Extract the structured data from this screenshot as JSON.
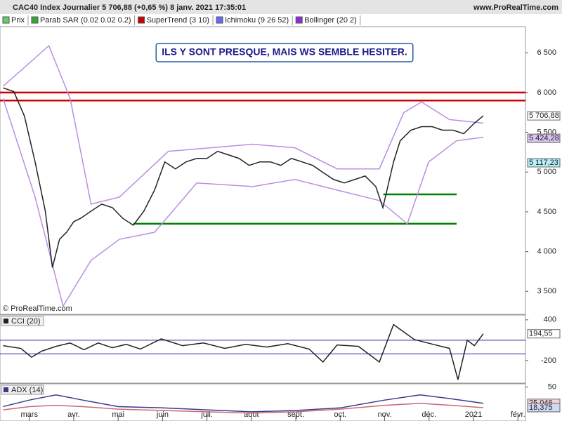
{
  "header": {
    "title": "CAC40 Index Journalier 5 706,88 (+0,65 %) 8 janv. 2021 17:35:01",
    "site": "www.ProRealTime.com",
    "watermark": "© ProRealTime.com",
    "legend": [
      {
        "text": "Prix",
        "color": "#66cc66"
      },
      {
        "text": "Parab SAR (0.02 0.02 0.2)",
        "color": "#33aa33"
      },
      {
        "text": "SuperTrend (3 10)",
        "color": "#cc0000"
      },
      {
        "text": "Ichimoku (9 26 52)",
        "color": "#6666ff"
      },
      {
        "text": "Bollinger (20 2)",
        "color": "#8a2be2"
      }
    ]
  },
  "chart_data": [
    {
      "type": "line",
      "annotation": "ILS Y SONT PRESQUE, MAIS WS SEMBLE HESITER.",
      "xlim": [
        2.34,
        14.17
      ],
      "ylim": [
        3220,
        6740
      ],
      "yticks": [
        {
          "value": 3500,
          "label": "3 500"
        },
        {
          "value": 4000,
          "label": "4 000"
        },
        {
          "value": 4500,
          "label": "4 500"
        },
        {
          "value": 5000,
          "label": "5 000"
        },
        {
          "value": 5500,
          "label": "5 500"
        },
        {
          "value": 6000,
          "label": "6 000"
        },
        {
          "value": 6500,
          "label": "6 500"
        }
      ],
      "series": [
        {
          "color": "#ba8fe0",
          "x": [
            2.41,
            3.44,
            3.92,
            4.39,
            5.03,
            6.13,
            7.08,
            8.03,
            8.98,
            9.93,
            10.88,
            11.43,
            11.83,
            12.46,
            13.22
          ],
          "values": [
            6080,
            6588,
            5925,
            4597,
            4686,
            5261,
            5305,
            5350,
            5305,
            5040,
            5040,
            5748,
            5881,
            5660,
            5615
          ]
        },
        {
          "color": "#ba8fe0",
          "x": [
            2.41,
            3.13,
            3.76,
            4.39,
            5.03,
            5.82,
            6.77,
            8.03,
            8.98,
            9.93,
            10.88,
            11.51,
            11.99,
            12.62,
            13.22
          ],
          "values": [
            5925,
            4686,
            3314,
            3890,
            4155,
            4243,
            4863,
            4818,
            4907,
            4774,
            4642,
            4350,
            5128,
            5394,
            5438
          ]
        },
        {
          "color": "#222222",
          "x": [
            2.41,
            2.65,
            2.89,
            3.13,
            3.36,
            3.52,
            3.68,
            3.84,
            4.0,
            4.16,
            4.39,
            4.63,
            4.87,
            5.1,
            5.34,
            5.58,
            5.82,
            6.05,
            6.29,
            6.53,
            6.77,
            7.0,
            7.24,
            7.48,
            7.72,
            7.95,
            8.19,
            8.43,
            8.66,
            8.9,
            9.14,
            9.38,
            9.61,
            9.85,
            10.09,
            10.33,
            10.56,
            10.8,
            10.96,
            11.2,
            11.35,
            11.59,
            11.83,
            12.07,
            12.3,
            12.54,
            12.78,
            13.02,
            13.22
          ],
          "values": [
            6058,
            6013,
            5704,
            5128,
            4509,
            3800,
            4155,
            4243,
            4376,
            4420,
            4509,
            4597,
            4553,
            4420,
            4332,
            4509,
            4774,
            5128,
            5040,
            5128,
            5172,
            5172,
            5261,
            5217,
            5172,
            5084,
            5128,
            5128,
            5084,
            5172,
            5128,
            5084,
            4995,
            4907,
            4863,
            4907,
            4951,
            4818,
            4553,
            5128,
            5394,
            5527,
            5571,
            5571,
            5527,
            5527,
            5483,
            5615,
            5706.88
          ]
        }
      ],
      "hlines": [
        {
          "value": 6000,
          "color": "#d00000",
          "xrange": [
            2.34,
            14.17
          ]
        },
        {
          "value": 5900,
          "color": "#d00000",
          "xrange": [
            2.34,
            14.17
          ]
        },
        {
          "value": 4720,
          "color": "#008000",
          "xrange": [
            10.97,
            12.62
          ]
        },
        {
          "value": 4350,
          "color": "#008000",
          "xrange": [
            5.34,
            12.62
          ]
        }
      ],
      "price_labels": [
        {
          "value": 5706.88,
          "label": "5 706,88",
          "color": "#ffffff"
        },
        {
          "value": 5424.28,
          "label": "5 424,28",
          "color": "#d8c4f0"
        },
        {
          "value": 5117.23,
          "label": "5 117,23",
          "color": "#b8f0f8"
        }
      ]
    },
    {
      "type": "line",
      "title": "CCI (20)",
      "xlim": [
        2.34,
        14.17
      ],
      "ylim": [
        -520,
        460
      ],
      "yticks": [
        400,
        -200
      ],
      "series": [
        {
          "color": "#222222",
          "x": [
            2.41,
            2.81,
            3.05,
            3.28,
            3.6,
            3.92,
            4.23,
            4.55,
            4.87,
            5.18,
            5.5,
            5.97,
            6.45,
            6.92,
            7.4,
            7.87,
            8.35,
            8.82,
            9.3,
            9.61,
            9.93,
            10.41,
            10.88,
            11.2,
            11.67,
            12.15,
            12.46,
            12.65,
            12.86,
            13.02,
            13.22
          ],
          "values": [
            20,
            -20,
            -150,
            -60,
            10,
            60,
            -40,
            60,
            -10,
            40,
            -30,
            120,
            20,
            60,
            -20,
            40,
            0,
            50,
            -30,
            -220,
            30,
            10,
            -220,
            330,
            110,
            30,
            -20,
            -480,
            100,
            20,
            194.55
          ]
        }
      ],
      "hlines": [
        {
          "value": 100,
          "color": "#2a2aa0",
          "xrange": [
            2.34,
            14.17
          ]
        },
        {
          "value": -100,
          "color": "#2a2aa0",
          "xrange": [
            2.34,
            14.17
          ]
        }
      ],
      "price_labels": [
        {
          "value": 194.55,
          "label": "194,55",
          "color": "#ffffff"
        }
      ]
    },
    {
      "type": "line",
      "title": "ADX (14)",
      "xlim": [
        2.34,
        14.17
      ],
      "ylim": [
        0,
        55
      ],
      "yticks": [
        50
      ],
      "xticks": [
        {
          "value": 3,
          "label": "mars"
        },
        {
          "value": 4,
          "label": "avr."
        },
        {
          "value": 5,
          "label": "mai"
        },
        {
          "value": 6,
          "label": "juin"
        },
        {
          "value": 7,
          "label": "juil."
        },
        {
          "value": 8,
          "label": "août"
        },
        {
          "value": 9,
          "label": "sept."
        },
        {
          "value": 10,
          "label": "oct."
        },
        {
          "value": 11,
          "label": "nov."
        },
        {
          "value": 12,
          "label": "déc."
        },
        {
          "value": 13,
          "label": "2021"
        },
        {
          "value": 14,
          "label": "févr."
        }
      ],
      "series": [
        {
          "color": "#3a3a8a",
          "x": [
            2.41,
            3.0,
            3.6,
            4.2,
            5.0,
            6.0,
            7.0,
            8.0,
            9.0,
            10.0,
            11.0,
            11.8,
            12.5,
            13.22
          ],
          "values": [
            20,
            30,
            38,
            30,
            20,
            18,
            15,
            12,
            14,
            18,
            30,
            38,
            32,
            25.046
          ]
        },
        {
          "color": "#cc6677",
          "x": [
            2.41,
            3.0,
            3.6,
            4.2,
            5.0,
            6.0,
            7.0,
            8.0,
            9.0,
            10.0,
            11.0,
            11.8,
            12.5,
            13.22
          ],
          "values": [
            15,
            20,
            22,
            20,
            16,
            14,
            12,
            10,
            12,
            16,
            22,
            25,
            22,
            18.375
          ]
        }
      ],
      "price_labels": [
        {
          "value": 25.046,
          "label": "25,046",
          "color": "#f4d0d8"
        },
        {
          "value": 18.375,
          "label": "18,375",
          "color": "#d0d8f4"
        }
      ]
    }
  ]
}
